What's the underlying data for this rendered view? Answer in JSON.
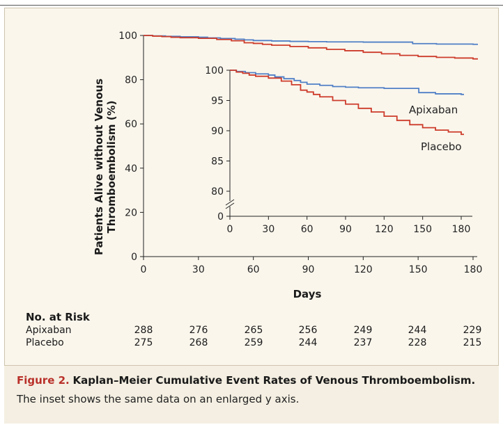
{
  "chart_data": [
    {
      "type": "line",
      "role": "main",
      "xlabel": "Days",
      "ylabel": "Patients Alive without Venous Thromboembolism (%)",
      "xlim": [
        0,
        180
      ],
      "ylim": [
        0,
        100
      ],
      "xticks": [
        0,
        30,
        60,
        90,
        120,
        150,
        180
      ],
      "yticks": [
        0,
        20,
        40,
        60,
        80,
        100
      ],
      "series": [
        {
          "name": "Apixaban",
          "color": "#4f7fc6",
          "x": [
            0,
            5,
            12,
            20,
            30,
            35,
            42,
            50,
            55,
            60,
            70,
            80,
            90,
            100,
            120,
            140,
            147,
            160,
            180
          ],
          "y": [
            100,
            99.8,
            99.6,
            99.4,
            99.2,
            98.9,
            98.6,
            98.3,
            98.0,
            97.7,
            97.5,
            97.3,
            97.2,
            97.1,
            97.0,
            97.0,
            96.3,
            96.1,
            96.0
          ]
        },
        {
          "name": "Placebo",
          "color": "#cd3b2a",
          "x": [
            0,
            5,
            10,
            15,
            20,
            30,
            40,
            48,
            55,
            60,
            65,
            70,
            80,
            90,
            100,
            110,
            120,
            130,
            140,
            150,
            160,
            170,
            180
          ],
          "y": [
            100,
            99.7,
            99.5,
            99.2,
            99.0,
            98.7,
            98.2,
            97.6,
            96.7,
            96.4,
            96.0,
            95.6,
            95.0,
            94.4,
            93.7,
            93.1,
            92.4,
            91.7,
            91.0,
            90.5,
            90.1,
            89.8,
            89.4
          ]
        }
      ]
    },
    {
      "type": "line",
      "role": "inset",
      "xlim": [
        0,
        180
      ],
      "ylim": [
        80,
        100
      ],
      "xticks": [
        0,
        30,
        60,
        90,
        120,
        150,
        180
      ],
      "yticks": [
        80,
        85,
        90,
        95,
        100
      ],
      "series": [
        {
          "name": "Apixaban",
          "label": "Apixaban",
          "color": "#4f7fc6",
          "x": [
            0,
            5,
            12,
            20,
            30,
            35,
            42,
            50,
            55,
            60,
            70,
            80,
            90,
            100,
            120,
            140,
            147,
            160,
            180
          ],
          "y": [
            100,
            99.8,
            99.6,
            99.4,
            99.2,
            98.9,
            98.6,
            98.3,
            98.0,
            97.7,
            97.5,
            97.3,
            97.2,
            97.1,
            97.0,
            97.0,
            96.3,
            96.1,
            96.0
          ]
        },
        {
          "name": "Placebo",
          "label": "Placebo",
          "color": "#cd3b2a",
          "x": [
            0,
            5,
            10,
            15,
            20,
            30,
            40,
            48,
            55,
            60,
            65,
            70,
            80,
            90,
            100,
            110,
            120,
            130,
            140,
            150,
            160,
            170,
            180
          ],
          "y": [
            100,
            99.7,
            99.5,
            99.2,
            99.0,
            98.7,
            98.2,
            97.6,
            96.7,
            96.4,
            96.0,
            95.6,
            95.0,
            94.4,
            93.7,
            93.1,
            92.4,
            91.7,
            91.0,
            90.5,
            90.1,
            89.8,
            89.4
          ]
        }
      ]
    }
  ],
  "risk_table": {
    "title": "No. at Risk",
    "rows": [
      {
        "label": "Apixaban",
        "values": [
          "288",
          "276",
          "265",
          "256",
          "249",
          "244",
          "229"
        ]
      },
      {
        "label": "Placebo",
        "values": [
          "275",
          "268",
          "259",
          "244",
          "237",
          "228",
          "215"
        ]
      }
    ]
  },
  "caption": {
    "figure_label": "Figure 2.",
    "title": "Kaplan–Meier Cumulative Event Rates of Venous Thromboembolism.",
    "note": "The inset shows the same data on an enlarged y axis."
  }
}
